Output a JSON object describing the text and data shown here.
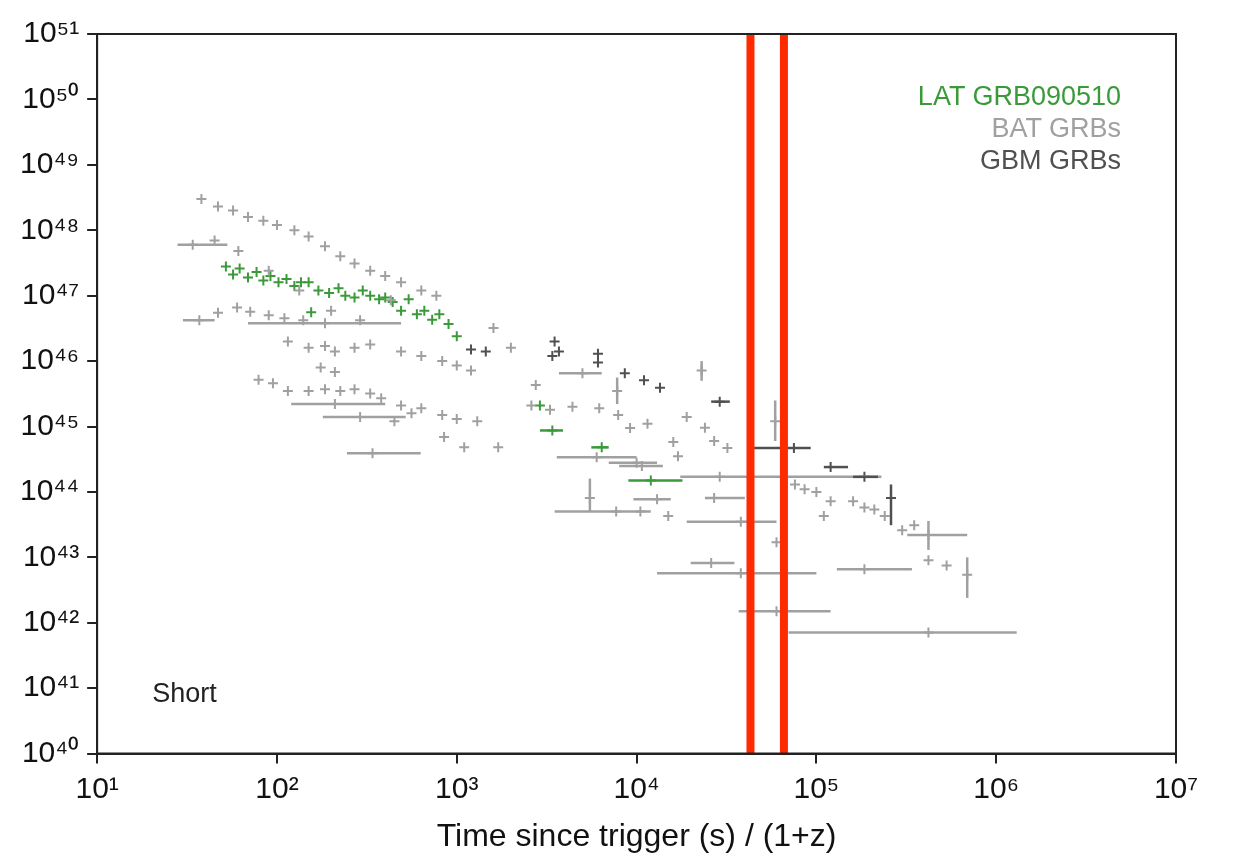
{
  "chart_data": {
    "type": "scatter",
    "xlabel": "Time since trigger (s) / (1+z)",
    "log": "xy",
    "grid": false,
    "marker": "cross",
    "legend": "top right",
    "xlim": [
      10,
      10000000
    ],
    "ylim": [
      1e+40,
      1e+51
    ],
    "xticks": [
      {
        "value": 10,
        "label": "10¹"
      },
      {
        "value": 100,
        "label": "10²"
      },
      {
        "value": 1000,
        "label": "10³"
      },
      {
        "value": 10000,
        "label": "10⁴"
      },
      {
        "value": 100000,
        "label": "10⁵"
      },
      {
        "value": 1000000,
        "label": "10⁶"
      },
      {
        "value": 10000000,
        "label": "10⁷"
      }
    ],
    "yticks": [
      {
        "value": 1e+40,
        "label": "10⁴⁰"
      },
      {
        "value": 1e+41,
        "label": "10⁴¹"
      },
      {
        "value": 1e+42,
        "label": "10⁴²"
      },
      {
        "value": 1e+43,
        "label": "10⁴³"
      },
      {
        "value": 1e+44,
        "label": "10⁴⁴"
      },
      {
        "value": 1e+45,
        "label": "10⁴⁵"
      },
      {
        "value": 1e+46,
        "label": "10⁴⁶"
      },
      {
        "value": 1e+47,
        "label": "10⁴⁷"
      },
      {
        "value": 1e+48,
        "label": "10⁴⁸"
      },
      {
        "value": 1e+49,
        "label": "10⁴⁹"
      },
      {
        "value": 1e+50,
        "label": "10⁵⁰"
      },
      {
        "value": 1e+51,
        "label": "10⁵¹"
      }
    ],
    "ref_lines": [
      {
        "axis": "x",
        "value": 43000,
        "color": "#ff2a00"
      },
      {
        "axis": "x",
        "value": 66000,
        "color": "#ff2a00"
      }
    ],
    "annotations": [
      "Short"
    ],
    "series": [
      {
        "name": "LAT GRB090510",
        "color": "#3a9a3a",
        "x": [
          52,
          57,
          62,
          69,
          77,
          84,
          92,
          102,
          113,
          125,
          136,
          150,
          155,
          170,
          195,
          220,
          240,
          270,
          300,
          330,
          370,
          400,
          440,
          490,
          540,
          600,
          660,
          730,
          800,
          900,
          1000,
          2900,
          3400,
          6400,
          12000
        ],
        "values": [
          2.8e+47,
          2.1e+47,
          2.6e+47,
          1.9e+47,
          2.3e+47,
          1.7e+47,
          2e+47,
          1.6e+47,
          1.8e+47,
          1.4e+47,
          1.6e+47,
          1.6e+47,
          5.6e+46,
          1.2e+47,
          1.1e+47,
          1.3e+47,
          1e+47,
          9.4e+46,
          1.2e+47,
          1e+47,
          8.8e+46,
          9.4e+46,
          8e+46,
          5.9e+46,
          8.8e+46,
          5.2e+46,
          5.9e+46,
          4.3e+46,
          5.2e+46,
          3.7e+46,
          2.4e+46,
          2.1e+45,
          8.7e+44,
          4.8e+44,
          1.5e+44
        ],
        "xerrors": [
          null,
          null,
          null,
          null,
          null,
          null,
          null,
          null,
          null,
          null,
          null,
          null,
          null,
          null,
          null,
          null,
          null,
          null,
          null,
          null,
          null,
          null,
          null,
          null,
          null,
          null,
          null,
          null,
          null,
          null,
          null,
          null,
          [
            2900,
            3900
          ],
          [
            5600,
            7000
          ],
          [
            9000,
            18000
          ]
        ]
      },
      {
        "name": "BAT GRBs",
        "color": "#a0a0a0",
        "x": [
          38,
          47,
          57,
          69,
          84,
          100,
          125,
          150,
          185,
          225,
          270,
          330,
          400,
          490,
          635,
          770,
          61,
          90,
          133,
          200,
          290,
          430,
          34,
          45,
          37,
          47,
          60,
          71,
          90,
          110,
          140,
          185,
          115,
          150,
          185,
          210,
          270,
          330,
          490,
          635,
          830,
          1000,
          1200,
          175,
          210,
          79,
          95,
          115,
          150,
          185,
          225,
          270,
          330,
          380,
          490,
          635,
          830,
          1000,
          1300,
          210,
          290,
          450,
          560,
          340,
          850,
          1100,
          1700,
          1600,
          2000,
          2750,
          5000,
          2600,
          3300,
          4400,
          6200,
          7900,
          11500,
          9200,
          7800,
          19000,
          23000,
          24000,
          27000,
          16000,
          6000,
          10000,
          17000,
          5500,
          7700,
          10500,
          15000,
          13000,
          10700,
          29000,
          27000,
          38000,
          26000,
          38000,
          60000,
          60000,
          32000,
          59000,
          76000,
          86000,
          100000,
          120000,
          110000,
          160000,
          185000,
          210000,
          240000,
          300000,
          350000,
          420000,
          420000,
          530000,
          690000,
          185000,
          420000
        ],
        "values": [
          3e+48,
          2.3e+48,
          2e+48,
          1.6e+48,
          1.4e+48,
          1.2e+48,
          1e+48,
          8e+47,
          5.7e+47,
          4e+47,
          3.1e+47,
          2.4e+47,
          2e+47,
          1.6e+47,
          1.2e+47,
          1e+47,
          4.8e+47,
          2.4e+47,
          1.2e+47,
          5.9e+46,
          4.2e+46,
          8.5e+46,
          6e+47,
          7e+47,
          4.2e+46,
          5.5e+46,
          6.6e+46,
          5.7e+46,
          5e+46,
          4.5e+46,
          4.2e+46,
          3.8e+46,
          2e+46,
          1.6e+46,
          1.7e+46,
          1.4e+46,
          1.6e+46,
          1.8e+46,
          1.4e+46,
          1.2e+46,
          1e+46,
          8.6e+45,
          7.2e+45,
          8e+45,
          6.8e+45,
          5.2e+45,
          4.6e+45,
          3.5e+45,
          3.5e+45,
          3.7e+45,
          3.5e+45,
          3.7e+45,
          3.2e+45,
          2.7e+45,
          2.1e+45,
          1.9e+45,
          1.5e+45,
          1.3e+45,
          1.2e+45,
          2.2e+45,
          1.4e+45,
          1.2e+45,
          1.6e+45,
          3.9e+44,
          6.9e+44,
          4.8e+44,
          4.8e+44,
          3.2e+46,
          1.6e+46,
          4.3e+45,
          6.5e+45,
          2.1e+45,
          1.8e+45,
          2e+45,
          1.9e+45,
          1.5e+45,
          1.1e+45,
          9.5e+44,
          3.5e+45,
          1.4e+45,
          7.2e+45,
          9.6e+44,
          6e+44,
          5.8e+44,
          3.4e+44,
          2.8e+44,
          3.5e+44,
          8.1e+43,
          5e+43,
          5e+43,
          4.3e+43,
          7.7e+43,
          2.5e+44,
          1.7e+44,
          8.1e+43,
          3.5e+43,
          8.2e+42,
          5.7e+42,
          1.5e+42,
          1.7e+43,
          4.7e+44,
          1.2e+45,
          1.3e+44,
          1.1e+44,
          1e+44,
          7.2e+43,
          4.3e+43,
          7.2e+43,
          5.8e+43,
          5.4e+43,
          4.3e+43,
          2.6e+43,
          3.1e+43,
          2.2e+43,
          9e+42,
          7.5e+42,
          5.4e+42,
          6.6e+42,
          7.1e+41
        ],
        "xerrors": [
          null,
          null,
          null,
          null,
          null,
          null,
          null,
          null,
          null,
          null,
          null,
          null,
          null,
          null,
          null,
          null,
          null,
          null,
          null,
          null,
          null,
          null,
          [
            28,
            53
          ],
          null,
          [
            30,
            45
          ],
          null,
          null,
          null,
          null,
          null,
          null,
          [
            69,
            490
          ],
          null,
          null,
          null,
          null,
          null,
          null,
          null,
          null,
          null,
          null,
          null,
          null,
          null,
          null,
          null,
          null,
          null,
          null,
          null,
          null,
          null,
          null,
          null,
          null,
          null,
          null,
          null,
          [
            120,
            400
          ],
          [
            180,
            520
          ],
          null,
          null,
          [
            245,
            630
          ],
          null,
          null,
          null,
          null,
          null,
          null,
          [
            3700,
            6400
          ],
          null,
          null,
          null,
          null,
          null,
          null,
          null,
          null,
          null,
          null,
          null,
          null,
          null,
          [
            3600,
            10000
          ],
          [
            7000,
            13000
          ],
          null,
          null,
          [
            3500,
            12000
          ],
          null,
          null,
          [
            9600,
            15500
          ],
          [
            8000,
            14000
          ],
          [
            17500,
            230000
          ],
          [
            24000,
            40000
          ],
          [
            19000,
            60000
          ],
          [
            20000,
            35000
          ],
          [
            13000,
            100000
          ],
          [
            37000,
            120000
          ],
          null,
          null,
          null,
          null,
          null,
          null,
          null,
          null,
          null,
          null,
          null,
          null,
          null,
          null,
          [
            320000,
            690000
          ],
          null,
          null,
          null,
          [
            130000,
            340000
          ],
          [
            70000,
            1300000
          ]
        ],
        "errors": [
          null,
          null,
          null,
          null,
          null,
          null,
          null,
          null,
          null,
          null,
          null,
          null,
          null,
          null,
          null,
          null,
          null,
          null,
          null,
          null,
          null,
          null,
          null,
          null,
          null,
          null,
          null,
          null,
          null,
          null,
          null,
          null,
          null,
          null,
          null,
          null,
          null,
          null,
          null,
          null,
          null,
          null,
          null,
          null,
          null,
          null,
          null,
          null,
          null,
          null,
          null,
          null,
          null,
          null,
          null,
          null,
          null,
          null,
          null,
          null,
          null,
          null,
          null,
          null,
          null,
          null,
          null,
          null,
          null,
          null,
          null,
          null,
          null,
          null,
          null,
          null,
          null,
          null,
          [
            2.2e+45,
            5.6e+45
          ],
          null,
          [
            5e+45,
            1e+46
          ],
          null,
          null,
          null,
          null,
          null,
          null,
          [
            5e+43,
            1.6e+44
          ],
          null,
          null,
          null,
          null,
          null,
          null,
          null,
          null,
          null,
          null,
          null,
          null,
          null,
          [
            6e+44,
            2.5e+45
          ],
          null,
          null,
          null,
          null,
          null,
          null,
          null,
          null,
          null,
          null,
          null,
          [
            1.3e+43,
            3.6e+43
          ],
          null,
          null,
          [
            2.4e+42,
            1e+43
          ],
          null,
          null
        ]
      },
      {
        "name": "GBM GRBs",
        "color": "#505050",
        "x": [
          1200,
          1450,
          3500,
          3700,
          3400,
          6100,
          6100,
          8600,
          11000,
          13500,
          29000,
          75000,
          120000,
          185000,
          260000
        ],
        "values": [
          1.5e+46,
          1.4e+46,
          2e+46,
          1.4e+46,
          1.2e+46,
          1.3e+46,
          9.5e+45,
          6.5e+45,
          5.1e+45,
          3.9e+45,
          2.4e+45,
          4.7e+44,
          2.4e+44,
          1.7e+44,
          8.1e+43
        ],
        "xerrors": [
          null,
          null,
          null,
          null,
          null,
          null,
          null,
          null,
          null,
          null,
          [
            26000,
            33000
          ],
          [
            42000,
            93000
          ],
          [
            110000,
            150000
          ],
          [
            160000,
            220000
          ],
          null
        ],
        "errors": [
          null,
          null,
          null,
          null,
          null,
          null,
          null,
          null,
          null,
          null,
          null,
          null,
          null,
          null,
          [
            3.1e+43,
            1.3e+44
          ]
        ]
      }
    ]
  }
}
